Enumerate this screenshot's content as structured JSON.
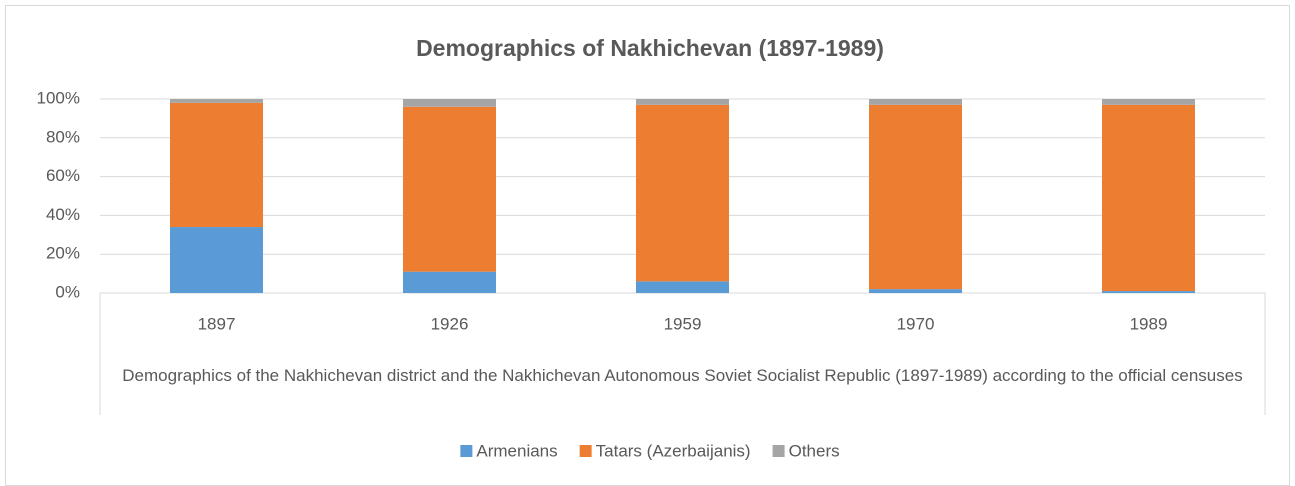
{
  "chart_data": {
    "type": "stacked_bar",
    "title": "Demographics of Nakhichevan (1897-1989)",
    "x_label": "Demographics of the Nakhichevan district and the Nakhichevan Autonomous Soviet Socialist Republic (1897-1989) according to the official censuses",
    "categories": [
      "1897",
      "1926",
      "1959",
      "1970",
      "1989"
    ],
    "series": [
      {
        "name": "Armenians",
        "color": "#5b9bd5",
        "values": [
          34,
          11,
          6,
          2,
          1
        ]
      },
      {
        "name": "Tatars (Azerbaijanis)",
        "color": "#ed7d31",
        "values": [
          64,
          85,
          91,
          95,
          96
        ]
      },
      {
        "name": "Others",
        "color": "#a5a5a5",
        "values": [
          2,
          4,
          3,
          3,
          3
        ]
      }
    ],
    "ylim": [
      0,
      100
    ],
    "yticks": [
      {
        "value": 0,
        "label": "0%"
      },
      {
        "value": 20,
        "label": "20%"
      },
      {
        "value": 40,
        "label": "40%"
      },
      {
        "value": 60,
        "label": "60%"
      },
      {
        "value": 80,
        "label": "80%"
      },
      {
        "value": 100,
        "label": "100%"
      }
    ],
    "grid": true,
    "legend": "bottom"
  }
}
